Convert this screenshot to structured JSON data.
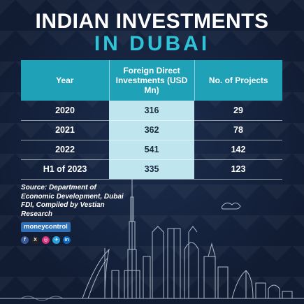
{
  "title": {
    "line1": "INDIAN INVESTMENTS",
    "line2": "IN DUBAI"
  },
  "table": {
    "headers": [
      "Year",
      "Foreign Direct Investments (USD Mn)",
      "No. of Projects"
    ],
    "rows": [
      {
        "year": "2020",
        "fdi": "316",
        "projects": "29"
      },
      {
        "year": "2021",
        "fdi": "362",
        "projects": "78"
      },
      {
        "year": "2022",
        "fdi": "541",
        "projects": "142"
      },
      {
        "year": "H1 of 2023",
        "fdi": "335",
        "projects": "123"
      }
    ]
  },
  "source": "Source: Department of Economic Development, Dubai FDI, Compiled by Vestian Research",
  "brand": "moneycontrol",
  "social": [
    "f",
    "X",
    "◎",
    "✈",
    "in"
  ],
  "colors": {
    "background": "#14213a",
    "accent": "#2ec4d8",
    "header": "#1fa1b7",
    "highlight": "#bfe6ef"
  }
}
